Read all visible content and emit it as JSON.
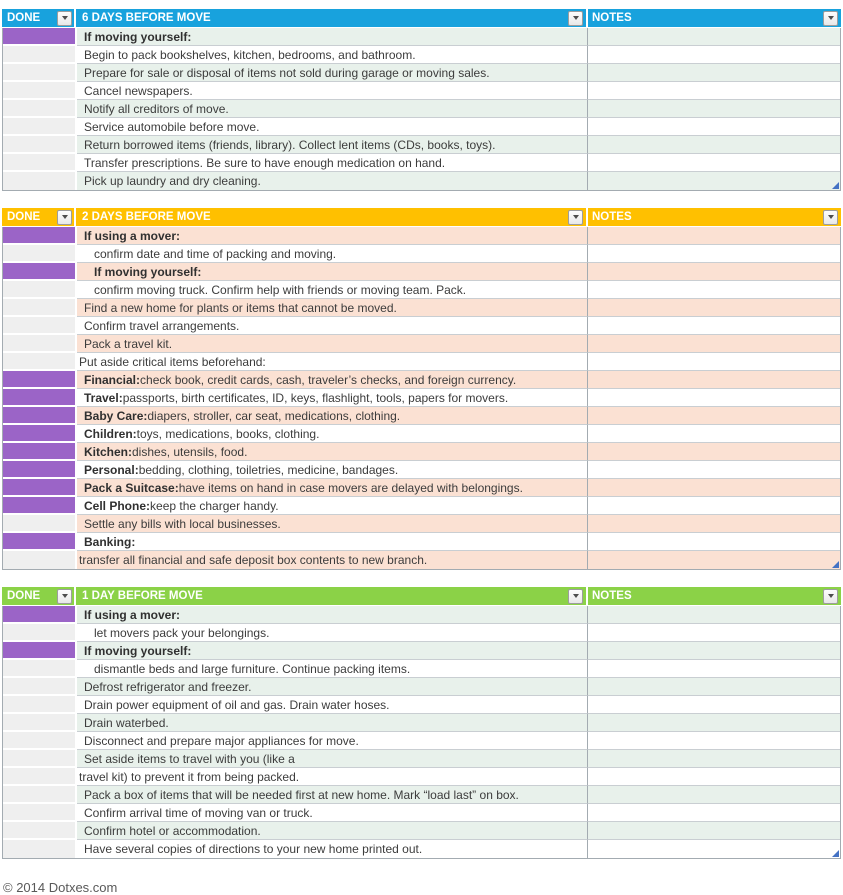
{
  "colors": {
    "section1_header": "#18a2dd",
    "section2_header": "#ffc000",
    "section3_header": "#8bd247",
    "tint_green": "#e8f1eb",
    "tint_peach": "#fbe1d3",
    "done_filled": "#9b64c7",
    "done_blank": "#efefef",
    "resize_handle": "#4472c4"
  },
  "sections": [
    {
      "done_label": "DONE",
      "title": "6 DAYS BEFORE MOVE",
      "notes_label": "NOTES",
      "header_color": "#18a2dd",
      "tint_color": "#e8f1eb",
      "rows": [
        {
          "done": true,
          "lead": "If moving yourself:",
          "text": "",
          "tinted": true,
          "indent": "n"
        },
        {
          "done": false,
          "lead": "",
          "text": "Begin to pack bookshelves, kitchen, bedrooms, and bathroom.",
          "tinted": false,
          "indent": "n"
        },
        {
          "done": false,
          "lead": "",
          "text": "Prepare for sale or disposal of items not sold during garage or moving sales.",
          "tinted": true,
          "indent": "n"
        },
        {
          "done": false,
          "lead": "",
          "text": "Cancel newspapers.",
          "tinted": false,
          "indent": "n"
        },
        {
          "done": false,
          "lead": "",
          "text": "Notify all creditors of move.",
          "tinted": true,
          "indent": "n"
        },
        {
          "done": false,
          "lead": "",
          "text": "Service automobile before move.",
          "tinted": false,
          "indent": "n"
        },
        {
          "done": false,
          "lead": "",
          "text": "Return borrowed items (friends, library). Collect lent items (CDs, books, toys).",
          "tinted": true,
          "indent": "n"
        },
        {
          "done": false,
          "lead": "",
          "text": "Transfer prescriptions. Be sure to have enough medication on hand.",
          "tinted": false,
          "indent": "n"
        },
        {
          "done": false,
          "lead": "",
          "text": "Pick up laundry and dry cleaning.",
          "tinted": true,
          "indent": "n"
        }
      ]
    },
    {
      "done_label": "DONE",
      "title": "2 DAYS BEFORE MOVE",
      "notes_label": "NOTES",
      "header_color": "#ffc000",
      "tint_color": "#fbe1d3",
      "rows": [
        {
          "done": true,
          "lead": "If using a mover:",
          "text": "",
          "tinted": true,
          "indent": "n"
        },
        {
          "done": false,
          "lead": "",
          "text": "confirm date and time of packing and moving.",
          "tinted": false,
          "indent": "i"
        },
        {
          "done": true,
          "lead": "If moving yourself:",
          "text": "",
          "tinted": true,
          "indent": "i"
        },
        {
          "done": false,
          "lead": "",
          "text": "confirm moving truck. Confirm help with friends or moving team. Pack.",
          "tinted": false,
          "indent": "i"
        },
        {
          "done": false,
          "lead": "",
          "text": "Find a new home for plants or items that cannot be moved.",
          "tinted": true,
          "indent": "n"
        },
        {
          "done": false,
          "lead": "",
          "text": "Confirm travel arrangements.",
          "tinted": false,
          "indent": "n"
        },
        {
          "done": false,
          "lead": "",
          "text": "Pack a travel kit.",
          "tinted": true,
          "indent": "n"
        },
        {
          "done": false,
          "lead": "",
          "text": "Put aside critical items beforehand:",
          "tinted": false,
          "indent": "f"
        },
        {
          "done": true,
          "lead": "Financial:",
          "text": " check book, credit cards, cash, traveler’s checks, and foreign currency.",
          "tinted": true,
          "indent": "n"
        },
        {
          "done": true,
          "lead": "Travel:",
          "text": " passports, birth certificates, ID, keys, flashlight, tools, papers for movers.",
          "tinted": false,
          "indent": "n"
        },
        {
          "done": true,
          "lead": "Baby Care:",
          "text": " diapers, stroller, car seat, medications, clothing.",
          "tinted": true,
          "indent": "n"
        },
        {
          "done": true,
          "lead": "Children:",
          "text": " toys, medications, books, clothing.",
          "tinted": false,
          "indent": "n"
        },
        {
          "done": true,
          "lead": "Kitchen:",
          "text": " dishes, utensils, food.",
          "tinted": true,
          "indent": "n"
        },
        {
          "done": true,
          "lead": "Personal:",
          "text": " bedding, clothing, toiletries, medicine, bandages.",
          "tinted": false,
          "indent": "n"
        },
        {
          "done": true,
          "lead": "Pack a Suitcase:",
          "text": " have items on hand in case movers are delayed with belongings.",
          "tinted": true,
          "indent": "n"
        },
        {
          "done": true,
          "lead": "Cell Phone:",
          "text": " keep the charger handy.",
          "tinted": false,
          "indent": "n"
        },
        {
          "done": false,
          "lead": "",
          "text": "Settle any bills with local businesses.",
          "tinted": true,
          "indent": "n"
        },
        {
          "done": true,
          "lead": "Banking:",
          "text": "",
          "tinted": false,
          "indent": "n"
        },
        {
          "done": false,
          "lead": "",
          "text": "transfer all financial and safe deposit box contents to new branch.",
          "tinted": true,
          "indent": "f"
        }
      ]
    },
    {
      "done_label": "DONE",
      "title": "1 DAY BEFORE MOVE",
      "notes_label": "NOTES",
      "header_color": "#8bd247",
      "tint_color": "#e8f1eb",
      "rows": [
        {
          "done": true,
          "lead": "If using a mover:",
          "text": "",
          "tinted": true,
          "indent": "n"
        },
        {
          "done": false,
          "lead": "",
          "text": "let movers pack your belongings.",
          "tinted": false,
          "indent": "i"
        },
        {
          "done": true,
          "lead": "If moving yourself:",
          "text": "",
          "tinted": true,
          "indent": "n"
        },
        {
          "done": false,
          "lead": "",
          "text": "dismantle beds and large furniture. Continue packing items.",
          "tinted": false,
          "indent": "i"
        },
        {
          "done": false,
          "lead": "",
          "text": "Defrost refrigerator and freezer.",
          "tinted": true,
          "indent": "n"
        },
        {
          "done": false,
          "lead": "",
          "text": "Drain power equipment of oil and gas. Drain water hoses.",
          "tinted": false,
          "indent": "n"
        },
        {
          "done": false,
          "lead": "",
          "text": "Drain waterbed.",
          "tinted": true,
          "indent": "n"
        },
        {
          "done": false,
          "lead": "",
          "text": "Disconnect and prepare major appliances for move.",
          "tinted": false,
          "indent": "n"
        },
        {
          "done": false,
          "lead": "",
          "text": "Set aside items to travel with you (like a",
          "tinted": true,
          "indent": "n"
        },
        {
          "done": false,
          "lead": "",
          "text": "travel kit) to prevent it from being packed.",
          "tinted": false,
          "indent": "f"
        },
        {
          "done": false,
          "lead": "",
          "text": "Pack a box of items that will be needed first at new home. Mark “load last” on box.",
          "tinted": true,
          "indent": "n"
        },
        {
          "done": false,
          "lead": "",
          "text": "Confirm arrival time of moving van or truck.",
          "tinted": false,
          "indent": "n"
        },
        {
          "done": false,
          "lead": "",
          "text": "Confirm hotel or accommodation.",
          "tinted": true,
          "indent": "n"
        },
        {
          "done": false,
          "lead": "",
          "text": "Have several copies of directions to your new home printed out.",
          "tinted": false,
          "indent": "n"
        }
      ]
    }
  ],
  "footer": {
    "copyright": "© 2014 Dotxes.com"
  }
}
